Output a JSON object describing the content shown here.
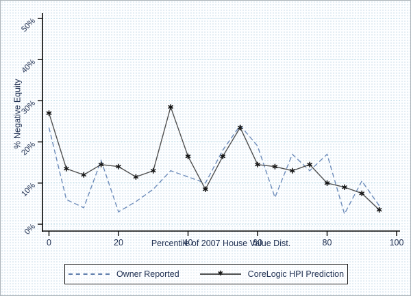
{
  "figure": {
    "background": "#fdfeff",
    "border_color": "#aab2b8",
    "text_color": "#203052",
    "axis_color": "#000000",
    "grid_color": "#aed7e3"
  },
  "chart_data": {
    "type": "line",
    "title": "",
    "xlabel": "Percentile of 2007 House Value Dist.",
    "ylabel": "% Negative Equity",
    "x": [
      0,
      5,
      10,
      15,
      20,
      25,
      30,
      35,
      40,
      45,
      50,
      55,
      60,
      65,
      70,
      75,
      80,
      85,
      90,
      95
    ],
    "series": [
      {
        "name": "Owner Reported",
        "style": "dashed",
        "color": "#6d8cba",
        "marker": "none",
        "values": [
          23.5,
          6,
          4,
          15.5,
          3,
          5.5,
          8.5,
          13,
          11.5,
          10,
          18,
          24,
          19,
          6.5,
          17,
          13,
          17,
          2.5,
          10.5,
          4.5
        ]
      },
      {
        "name": "CoreLogic HPI Prediction",
        "style": "solid",
        "color": "#4f4f4f",
        "marker": "asterisk",
        "marker_color": "#161616",
        "values": [
          27,
          13.5,
          12,
          14.5,
          14,
          11.5,
          13,
          28.5,
          16.5,
          8.5,
          16.5,
          23.5,
          14.5,
          14,
          13,
          14.5,
          10,
          9,
          7.5,
          3.5
        ]
      }
    ],
    "xlim": [
      0,
      100
    ],
    "ylim": [
      0,
      52
    ],
    "x_ticks": {
      "values": [
        0,
        20,
        40,
        60,
        80,
        100
      ],
      "labels": [
        "0",
        "20",
        "40",
        "60",
        "80",
        "100"
      ]
    },
    "y_ticks": {
      "values": [
        0,
        10,
        20,
        30,
        40,
        50
      ],
      "labels": [
        "0%",
        "10%",
        "20%",
        "30%",
        "40%",
        "50%"
      ]
    },
    "grid": "horizontal-dotted",
    "legend_position": "bottom-boxed"
  }
}
